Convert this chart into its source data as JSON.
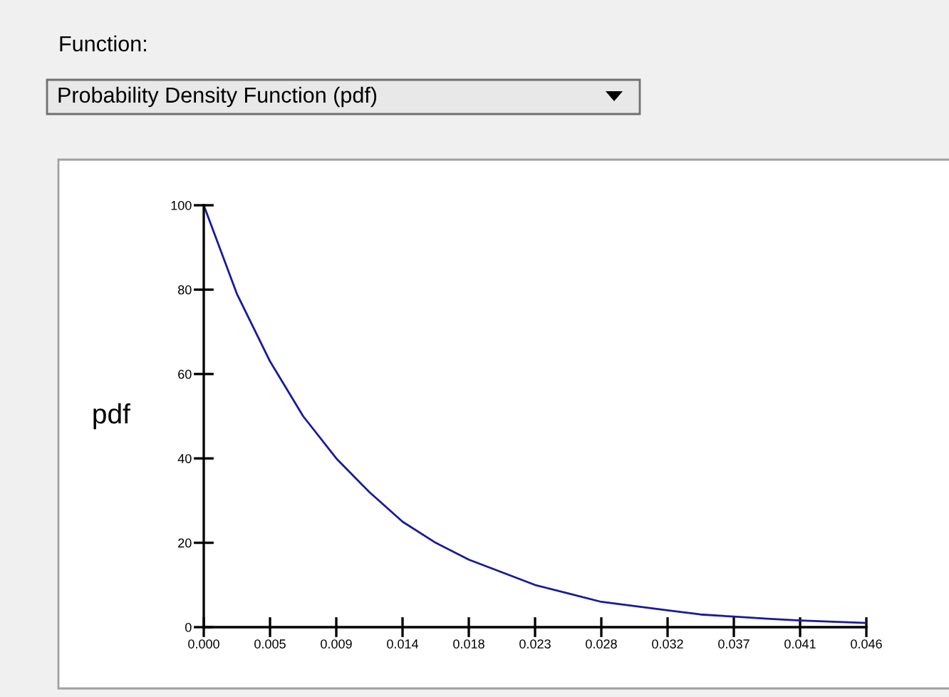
{
  "chart_data": {
    "type": "line",
    "title": "Function:",
    "subtitle": "Probability Density Function (pdf)",
    "ylabel": "pdf",
    "x": [
      0,
      0.0023,
      0.0046,
      0.0069,
      0.0092,
      0.0115,
      0.0138,
      0.0161,
      0.0184,
      0.0207,
      0.023,
      0.0253,
      0.0276,
      0.0299,
      0.0322,
      0.0345,
      0.0368,
      0.0391,
      0.0414,
      0.0437,
      0.046
    ],
    "series": [
      {
        "color": "#1a1a9a",
        "values": [
          100,
          79,
          63,
          50,
          40,
          32,
          25,
          20,
          16,
          13,
          10,
          8,
          6,
          5,
          4,
          3,
          2.5,
          2,
          1.6,
          1.3,
          1
        ]
      }
    ],
    "xlim": [
      0,
      0.046
    ],
    "ylim": [
      0,
      100
    ],
    "xticks": [
      {
        "value": 0,
        "label": "0.000"
      },
      {
        "value": 0.0046,
        "label": "0.005"
      },
      {
        "value": 0.0092,
        "label": "0.009"
      },
      {
        "value": 0.0138,
        "label": "0.014"
      },
      {
        "value": 0.0184,
        "label": "0.018"
      },
      {
        "value": 0.023,
        "label": "0.023"
      },
      {
        "value": 0.0276,
        "label": "0.028"
      },
      {
        "value": 0.0322,
        "label": "0.032"
      },
      {
        "value": 0.0368,
        "label": "0.037"
      },
      {
        "value": 0.0414,
        "label": "0.041"
      },
      {
        "value": 0.046,
        "label": "0.046"
      }
    ],
    "yticks": [
      0,
      20,
      40,
      60,
      80,
      100
    ],
    "grid": false,
    "legend": false,
    "marker": "none",
    "line_style": "solid"
  }
}
